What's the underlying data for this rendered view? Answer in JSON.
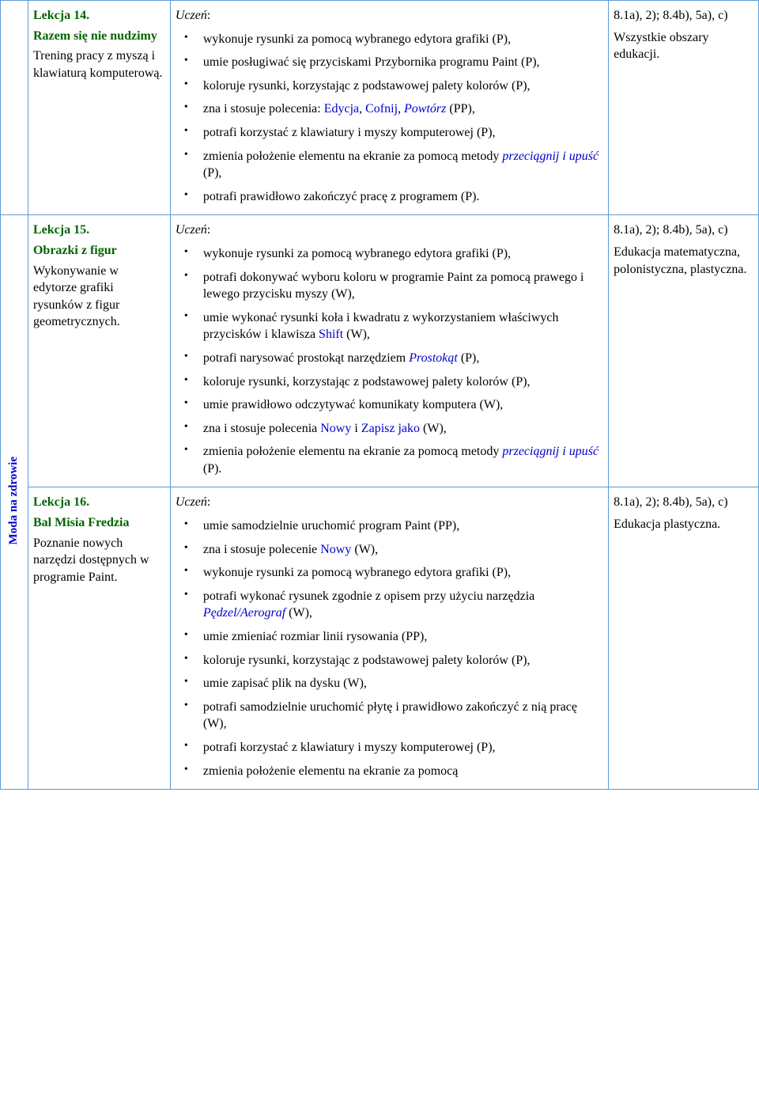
{
  "section_label": "Moda na zdrowie",
  "rows": [
    {
      "lesson_number": "Lekcja 14.",
      "lesson_title": "Razem się nie nudzimy",
      "lesson_desc": "Trening pracy z myszą i klawiaturą komputerową.",
      "uczen": "Uczeń",
      "bullets": [
        {
          "parts": [
            {
              "t": "wykonuje rysunki za pomocą wybranego edytora grafiki (P),"
            }
          ]
        },
        {
          "parts": [
            {
              "t": "umie posługiwać się przyciskami Przybornika programu Paint (P),"
            }
          ]
        },
        {
          "parts": [
            {
              "t": "koloruje rysunki, korzystając z podstawowej palety kolorów (P),"
            }
          ]
        },
        {
          "parts": [
            {
              "t": "zna i stosuje polecenia: "
            },
            {
              "t": "Edycja",
              "c": "blue"
            },
            {
              "t": ", "
            },
            {
              "t": "Cofnij",
              "c": "blue"
            },
            {
              "t": ", "
            },
            {
              "t": "Powtórz",
              "c": "blue-i"
            },
            {
              "t": " (PP),"
            }
          ]
        },
        {
          "parts": [
            {
              "t": "potrafi korzystać z klawiatury i myszy komputerowej (P),"
            }
          ]
        },
        {
          "parts": [
            {
              "t": "zmienia położenie elementu na ekranie za pomocą metody "
            },
            {
              "t": "przeciągnij i upuść",
              "c": "blue-i"
            },
            {
              "t": " (P),"
            }
          ]
        },
        {
          "parts": [
            {
              "t": "potrafi prawidłowo zakończyć pracę z programem (P)."
            }
          ]
        }
      ],
      "standards": "8.1a), 2); 8.4b), 5a), c)",
      "standards_note": "Wszystkie obszary edukacji."
    },
    {
      "lesson_number": "Lekcja 15.",
      "lesson_title": "Obrazki z figur",
      "lesson_desc": "Wykonywanie w edytorze grafiki rysunków z figur geometrycznych.",
      "uczen": "Uczeń",
      "bullets": [
        {
          "parts": [
            {
              "t": "wykonuje rysunki za pomocą wybranego edytora grafiki (P),"
            }
          ]
        },
        {
          "parts": [
            {
              "t": "potrafi dokonywać wyboru koloru w programie Paint za pomocą prawego i lewego przycisku myszy (W),"
            }
          ]
        },
        {
          "parts": [
            {
              "t": "umie wykonać rysunki koła i kwadratu z wykorzystaniem właściwych przycisków i klawisza "
            },
            {
              "t": "Shift",
              "c": "blue"
            },
            {
              "t": " (W),"
            }
          ]
        },
        {
          "parts": [
            {
              "t": "potrafi narysować prostokąt narzędziem "
            },
            {
              "t": "Prostokąt",
              "c": "blue-i"
            },
            {
              "t": " (P),"
            }
          ]
        },
        {
          "parts": [
            {
              "t": "koloruje rysunki, korzystając z podstawowej palety kolorów (P),"
            }
          ]
        },
        {
          "parts": [
            {
              "t": "umie prawidłowo odczytywać komunikaty komputera (W),"
            }
          ]
        },
        {
          "parts": [
            {
              "t": "zna i stosuje polecenia "
            },
            {
              "t": "Nowy",
              "c": "blue"
            },
            {
              "t": " i "
            },
            {
              "t": "Zapisz jako",
              "c": "blue"
            },
            {
              "t": " (W),"
            }
          ]
        },
        {
          "parts": [
            {
              "t": "zmienia położenie elementu na ekranie za pomocą metody "
            },
            {
              "t": "przeciągnij i upuść",
              "c": "blue-i"
            },
            {
              "t": " (P)."
            }
          ]
        }
      ],
      "standards": "8.1a), 2); 8.4b), 5a), c)",
      "standards_note": "Edukacja matematyczna, polonistyczna, plastyczna."
    },
    {
      "lesson_number": "Lekcja 16.",
      "lesson_title": "Bal Misia Fredzia",
      "lesson_desc": "Poznanie nowych narzędzi dostępnych w programie Paint.",
      "uczen": "Uczeń",
      "bullets": [
        {
          "parts": [
            {
              "t": "umie samodzielnie uruchomić program Paint (PP),"
            }
          ]
        },
        {
          "parts": [
            {
              "t": "zna i stosuje polecenie "
            },
            {
              "t": "Nowy",
              "c": "blue"
            },
            {
              "t": " (W),"
            }
          ]
        },
        {
          "parts": [
            {
              "t": "wykonuje rysunki za pomocą wybranego edytora grafiki (P),"
            }
          ]
        },
        {
          "parts": [
            {
              "t": "potrafi wykonać rysunek zgodnie z opisem przy użyciu narzędzia "
            },
            {
              "t": "Pędzel/Aerograf",
              "c": "blue-i"
            },
            {
              "t": " (W),"
            }
          ]
        },
        {
          "parts": [
            {
              "t": "umie zmieniać rozmiar linii rysowania (PP),"
            }
          ]
        },
        {
          "parts": [
            {
              "t": "koloruje rysunki, korzystając z podstawowej palety kolorów (P),"
            }
          ]
        },
        {
          "parts": [
            {
              "t": "umie zapisać plik na dysku (W),"
            }
          ]
        },
        {
          "parts": [
            {
              "t": "potrafi samodzielnie uruchomić płytę i prawidłowo zakończyć z nią pracę (W),"
            }
          ]
        },
        {
          "parts": [
            {
              "t": "potrafi korzystać z klawiatury i myszy komputerowej (P),"
            }
          ]
        },
        {
          "parts": [
            {
              "t": "zmienia położenie elementu na ekranie za pomocą"
            }
          ]
        }
      ],
      "standards": "8.1a), 2); 8.4b), 5a), c)",
      "standards_note": "Edukacja plastyczna."
    }
  ]
}
